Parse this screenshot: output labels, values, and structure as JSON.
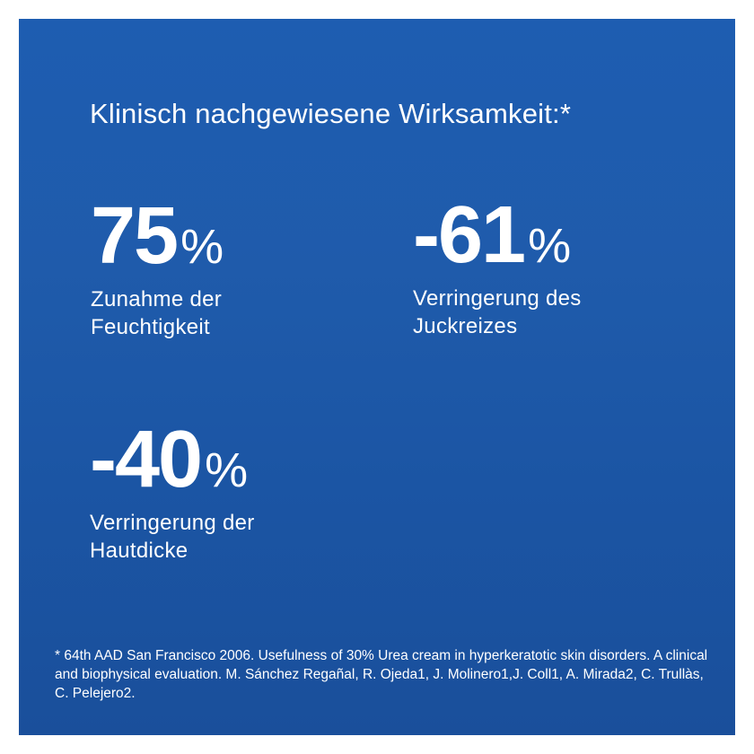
{
  "headline": "Klinisch nachgewiesene Wirksamkeit:*",
  "stats": [
    {
      "value": "75",
      "unit": "%",
      "label_line1": "Zunahme der",
      "label_line2": "Feuchtigkeit"
    },
    {
      "value": "-61",
      "unit": "%",
      "label_line1": "Verringerung des",
      "label_line2": "Juckreizes"
    },
    {
      "value": "-40",
      "unit": "%",
      "label_line1": "Verringerung der",
      "label_line2": "Hautdicke"
    }
  ],
  "footnote": "* 64th AAD San Francisco 2006. Usefulness of 30% Urea cream in hyperkeratotic skin disorders. A clinical and biophysical evaluation. M. Sánchez Regañal, R. Ojeda1, J. Molinero1,J. Coll1, A. Mirada2, C. Trullàs, C. Pelejero2.",
  "colors": {
    "background_top": "#1e5db1",
    "background_bottom": "#1a4f9b",
    "text": "#ffffff",
    "page_border": "#ffffff"
  }
}
